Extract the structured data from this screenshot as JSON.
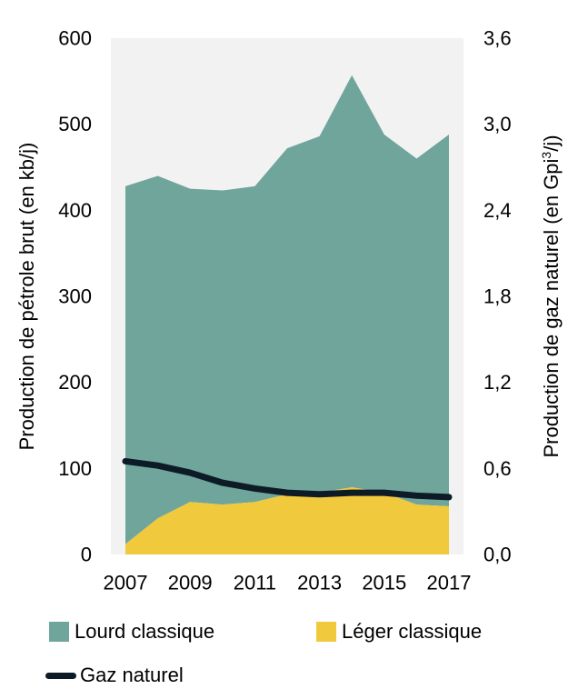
{
  "chart_data": {
    "type": "area",
    "x": [
      2007,
      2008,
      2009,
      2010,
      2011,
      2012,
      2013,
      2014,
      2015,
      2016,
      2017
    ],
    "x_tick_labels": [
      "2007",
      "2009",
      "2011",
      "2013",
      "2015",
      "2017"
    ],
    "y_left": {
      "label": "Production de pétrole brut (en kb/j)",
      "range": [
        0,
        600
      ],
      "ticks": [
        "0",
        "100",
        "200",
        "300",
        "400",
        "500",
        "600"
      ]
    },
    "y_right": {
      "label_main": "Production de gaz naturel  (en Gpi",
      "label_sup": "3",
      "label_end": "/j)",
      "range": [
        0,
        3.6
      ],
      "ticks": [
        "0,0",
        "0,6",
        "1,2",
        "1,8",
        "2,4",
        "3,0",
        "3,6"
      ]
    },
    "series": [
      {
        "name": "Léger classique",
        "axis": "left",
        "kind": "stacked-area",
        "color": "#f0c93c",
        "values": [
          12,
          42,
          61,
          58,
          61,
          70,
          72,
          78,
          72,
          58,
          56
        ]
      },
      {
        "name": "Lourd classique",
        "axis": "left",
        "kind": "stacked-area",
        "color": "#70a59c",
        "values": [
          416,
          398,
          364,
          365,
          367,
          402,
          414,
          479,
          416,
          402,
          432
        ]
      },
      {
        "name": "Gaz naturel",
        "axis": "right",
        "kind": "line",
        "color": "#0d1b26",
        "values": [
          0.65,
          0.62,
          0.57,
          0.5,
          0.46,
          0.43,
          0.42,
          0.43,
          0.43,
          0.41,
          0.4
        ]
      }
    ],
    "grid": false,
    "plot_background": "#f2f2f2",
    "legend_placement": "bottom"
  }
}
